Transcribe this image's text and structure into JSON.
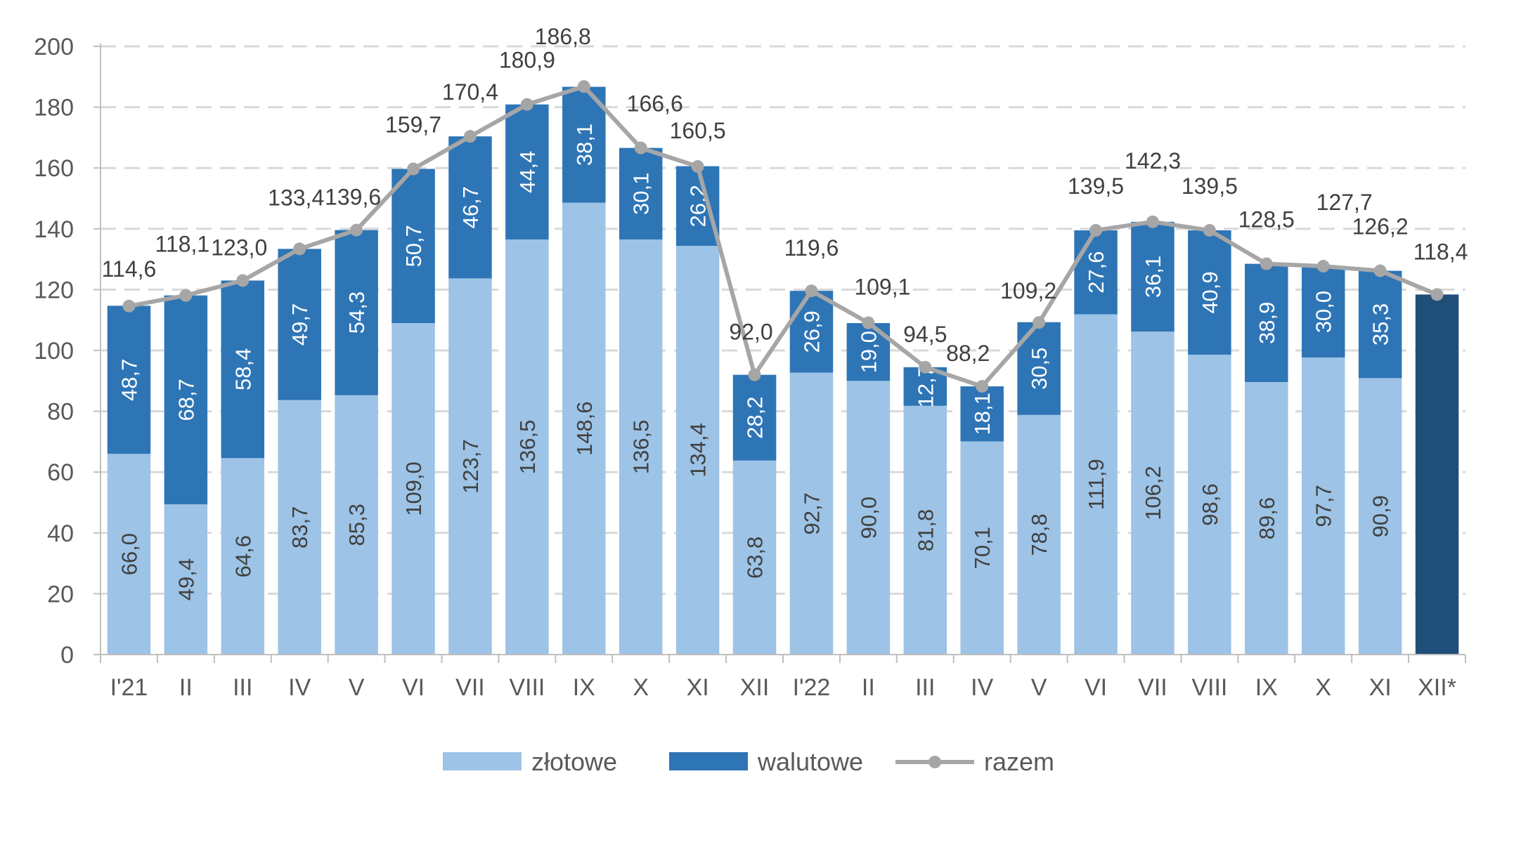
{
  "chart_data": {
    "type": "bar",
    "stacked": true,
    "categories": [
      "I'21",
      "II",
      "III",
      "IV",
      "V",
      "VI",
      "VII",
      "VIII",
      "IX",
      "X",
      "XI",
      "XII",
      "I'22",
      "II",
      "III",
      "IV",
      "V",
      "VI",
      "VII",
      "VIII",
      "IX",
      "X",
      "XI",
      "XII*"
    ],
    "series": [
      {
        "name": "złotowe",
        "type": "bar",
        "color": "#9DC3E6",
        "values": [
          66.0,
          49.4,
          64.6,
          83.7,
          85.3,
          109.0,
          123.7,
          136.5,
          148.6,
          136.5,
          134.4,
          63.8,
          92.7,
          90.0,
          81.8,
          70.1,
          78.8,
          111.9,
          106.2,
          98.6,
          89.6,
          97.7,
          90.9,
          null
        ],
        "labels": [
          "66,0",
          "49,4",
          "64,6",
          "83,7",
          "85,3",
          "109,0",
          "123,7",
          "136,5",
          "148,6",
          "136,5",
          "134,4",
          "63,8",
          "92,7",
          "90,0",
          "81,8",
          "70,1",
          "78,8",
          "111,9",
          "106,2",
          "98,6",
          "89,6",
          "97,7",
          "90,9",
          ""
        ]
      },
      {
        "name": "walutowe",
        "type": "bar",
        "color": "#2E75B6",
        "values": [
          48.7,
          68.7,
          58.4,
          49.7,
          54.3,
          50.7,
          46.7,
          44.4,
          38.1,
          30.1,
          26.2,
          28.2,
          26.9,
          19.0,
          12.7,
          18.1,
          30.5,
          27.6,
          36.1,
          40.9,
          38.9,
          30.0,
          35.3,
          null
        ],
        "labels": [
          "48,7",
          "68,7",
          "58,4",
          "49,7",
          "54,3",
          "50,7",
          "46,7",
          "44,4",
          "38,1",
          "30,1",
          "26,2",
          "28,2",
          "26,9",
          "19,0",
          "12,7",
          "18,1",
          "30,5",
          "27,6",
          "36,1",
          "40,9",
          "38,9",
          "30,0",
          "35,3",
          ""
        ]
      },
      {
        "name": "razem",
        "type": "line",
        "color": "#A6A6A6",
        "values": [
          114.6,
          118.1,
          123.0,
          133.4,
          139.6,
          159.7,
          170.4,
          180.9,
          186.8,
          166.6,
          160.5,
          92.0,
          119.6,
          109.1,
          94.5,
          88.2,
          109.2,
          139.5,
          142.3,
          139.5,
          128.5,
          127.7,
          126.2,
          118.4
        ],
        "labels": [
          "114,6",
          "118,1",
          "123,0",
          "133,4",
          "139,6",
          "159,7",
          "170,4",
          "180,9",
          "186,8",
          "166,6",
          "160,5",
          "92,0",
          "119,6",
          "109,1",
          "94,5",
          "88,2",
          "109,2",
          "139,5",
          "142,3",
          "139,5",
          "128,5",
          "127,7",
          "126,2",
          "118,4"
        ]
      }
    ],
    "xii_star_bar": {
      "value": 118.4,
      "color": "#1F4E79"
    },
    "yticks": [
      "0",
      "20",
      "40",
      "60",
      "80",
      "100",
      "120",
      "140",
      "160",
      "180",
      "200"
    ],
    "ylim": [
      0,
      200
    ],
    "grid": true,
    "legend": {
      "position": "bottom",
      "entries": [
        "złotowe",
        "walutowe",
        "razem"
      ]
    },
    "title": "",
    "xlabel": "",
    "ylabel": ""
  }
}
